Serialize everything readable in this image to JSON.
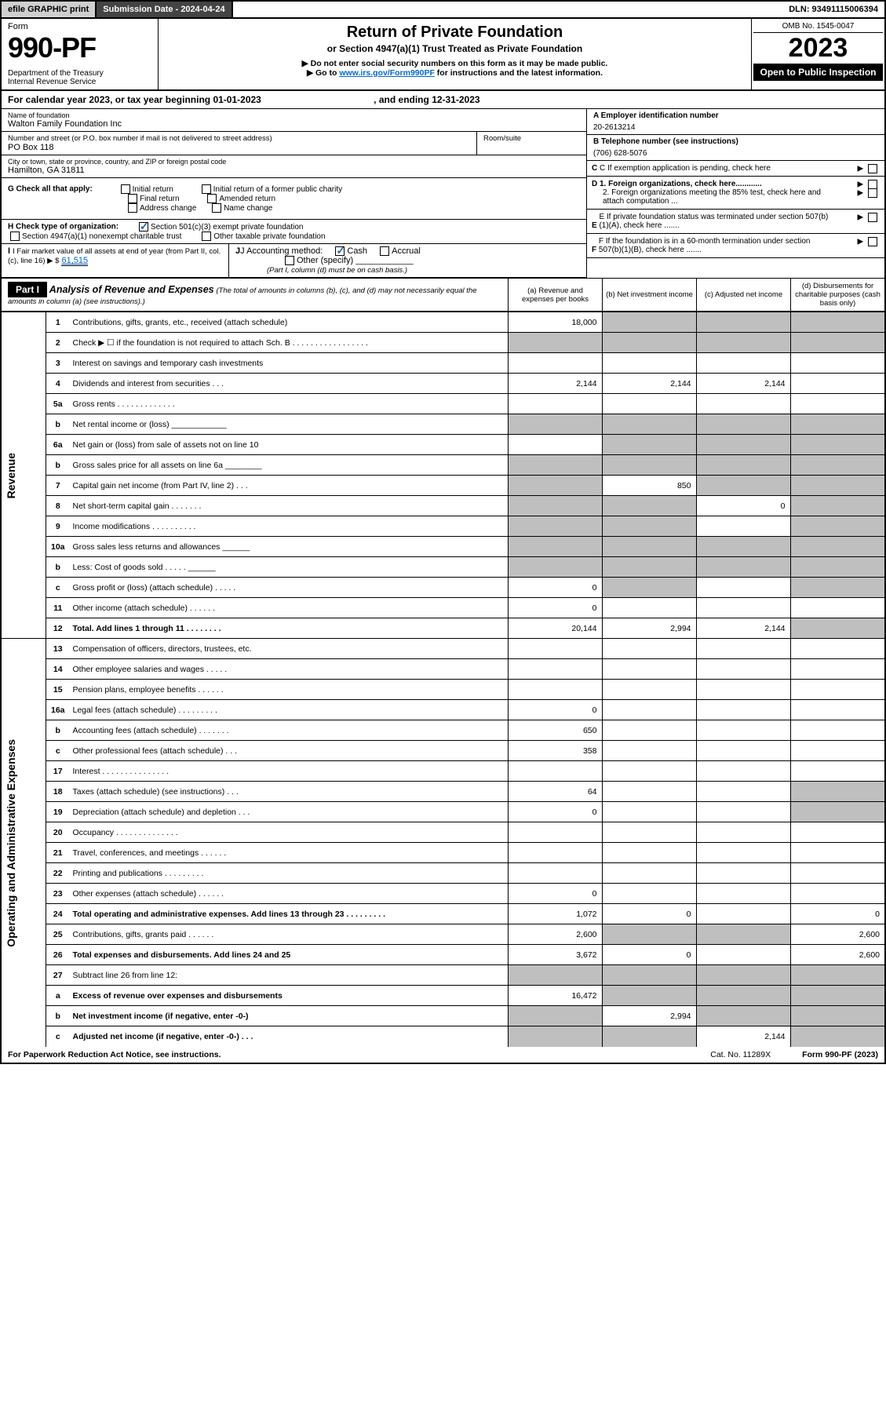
{
  "topbar": {
    "efile": "efile GRAPHIC print",
    "subdate": "Submission Date - 2024-04-24",
    "dln": "DLN: 93491115006394"
  },
  "header": {
    "form_label": "Form",
    "form_no": "990-PF",
    "dept": "Department of the Treasury\nInternal Revenue Service",
    "title": "Return of Private Foundation",
    "subtitle": "or Section 4947(a)(1) Trust Treated as Private Foundation",
    "note1": "▶ Do not enter social security numbers on this form as it may be made public.",
    "note2_pre": "▶ Go to ",
    "note2_link": "www.irs.gov/Form990PF",
    "note2_post": " for instructions and the latest information.",
    "omb": "OMB No. 1545-0047",
    "year": "2023",
    "open": "Open to Public Inspection"
  },
  "cy": {
    "pre": "For calendar year 2023, or tax year beginning ",
    "begin": "01-01-2023",
    "mid": " , and ending ",
    "end": "12-31-2023"
  },
  "id": {
    "name_lbl": "Name of foundation",
    "name": "Walton Family Foundation Inc",
    "addr_lbl": "Number and street (or P.O. box number if mail is not delivered to street address)",
    "addr": "PO Box 118",
    "room_lbl": "Room/suite",
    "city_lbl": "City or town, state or province, country, and ZIP or foreign postal code",
    "city": "Hamilton, GA  31811",
    "a_lbl": "A Employer identification number",
    "a_val": "20-2613214",
    "b_lbl": "B Telephone number (see instructions)",
    "b_val": "(706) 628-5076",
    "c_lbl": "C If exemption application is pending, check here",
    "d1": "D 1. Foreign organizations, check here............",
    "d2": "2. Foreign organizations meeting the 85% test, check here and attach computation ...",
    "e": "E If private foundation status was terminated under section 507(b)(1)(A), check here .......",
    "f": "F If the foundation is in a 60-month termination under section 507(b)(1)(B), check here .......",
    "g_lbl": "G Check all that apply:",
    "g_opts": [
      "Initial return",
      "Final return",
      "Address change",
      "Initial return of a former public charity",
      "Amended return",
      "Name change"
    ],
    "h_lbl": "H Check type of organization:",
    "h1": "Section 501(c)(3) exempt private foundation",
    "h2": "Section 4947(a)(1) nonexempt charitable trust",
    "h3": "Other taxable private foundation",
    "i_lbl": "I Fair market value of all assets at end of year (from Part II, col. (c), line 16) ▶ $",
    "i_val": "61,515",
    "j_lbl": "J Accounting method:",
    "j_cash": "Cash",
    "j_accr": "Accrual",
    "j_other": "Other (specify)",
    "j_note": "(Part I, column (d) must be on cash basis.)"
  },
  "part1": {
    "label": "Part I",
    "title": "Analysis of Revenue and Expenses",
    "title_note": "(The total of amounts in columns (b), (c), and (d) may not necessarily equal the amounts in column (a) (see instructions).)",
    "cols": {
      "a": "(a)  Revenue and expenses per books",
      "b": "(b)  Net investment income",
      "c": "(c)  Adjusted net income",
      "d": "(d)  Disbursements for charitable purposes (cash basis only)"
    }
  },
  "sections": {
    "revenue": "Revenue",
    "expenses": "Operating and Administrative Expenses"
  },
  "rows": [
    {
      "n": "1",
      "d": "Contributions, gifts, grants, etc., received (attach schedule)",
      "a": "18,000",
      "shade": [
        "b",
        "c",
        "d"
      ]
    },
    {
      "n": "2",
      "d": "Check ▶ ☐ if the foundation is not required to attach Sch. B   .  .  .  .  .  .  .  .  .  .  .  .  .  .  .  .  .",
      "shade": [
        "a",
        "b",
        "c",
        "d"
      ]
    },
    {
      "n": "3",
      "d": "Interest on savings and temporary cash investments"
    },
    {
      "n": "4",
      "d": "Dividends and interest from securities   .  .  .",
      "a": "2,144",
      "b": "2,144",
      "c": "2,144"
    },
    {
      "n": "5a",
      "d": "Gross rents   .  .  .  .  .  .  .  .  .  .  .  .  ."
    },
    {
      "n": "b",
      "d": "Net rental income or (loss)  ____________",
      "shade": [
        "a",
        "b",
        "c",
        "d"
      ]
    },
    {
      "n": "6a",
      "d": "Net gain or (loss) from sale of assets not on line 10",
      "shade": [
        "b",
        "c",
        "d"
      ]
    },
    {
      "n": "b",
      "d": "Gross sales price for all assets on line 6a ________",
      "shade": [
        "a",
        "b",
        "c",
        "d"
      ]
    },
    {
      "n": "7",
      "d": "Capital gain net income (from Part IV, line 2)   .  .  .",
      "b": "850",
      "shade": [
        "a",
        "c",
        "d"
      ]
    },
    {
      "n": "8",
      "d": "Net short-term capital gain   .  .  .  .  .  .  .",
      "c": "0",
      "shade": [
        "a",
        "b",
        "d"
      ]
    },
    {
      "n": "9",
      "d": "Income modifications  .  .  .  .  .  .  .  .  .  .",
      "shade": [
        "a",
        "b",
        "d"
      ]
    },
    {
      "n": "10a",
      "d": "Gross sales less returns and allowances  ______",
      "shade": [
        "a",
        "b",
        "c",
        "d"
      ]
    },
    {
      "n": "b",
      "d": "Less: Cost of goods sold    .  .  .  .  .  ______",
      "shade": [
        "a",
        "b",
        "c",
        "d"
      ]
    },
    {
      "n": "c",
      "d": "Gross profit or (loss) (attach schedule)   .  .  .  .  .",
      "a": "0",
      "shade": [
        "b",
        "d"
      ]
    },
    {
      "n": "11",
      "d": "Other income (attach schedule)   .  .  .  .  .  .",
      "a": "0"
    },
    {
      "n": "12",
      "d": "Total. Add lines 1 through 11   .  .  .  .  .  .  .  .",
      "a": "20,144",
      "b": "2,994",
      "c": "2,144",
      "bold": true,
      "shade": [
        "d"
      ]
    },
    {
      "n": "13",
      "d": "Compensation of officers, directors, trustees, etc."
    },
    {
      "n": "14",
      "d": "Other employee salaries and wages   .  .  .  .  ."
    },
    {
      "n": "15",
      "d": "Pension plans, employee benefits   .  .  .  .  .  ."
    },
    {
      "n": "16a",
      "d": "Legal fees (attach schedule)  .  .  .  .  .  .  .  .  .",
      "a": "0"
    },
    {
      "n": "b",
      "d": "Accounting fees (attach schedule)  .  .  .  .  .  .  .",
      "a": "650"
    },
    {
      "n": "c",
      "d": "Other professional fees (attach schedule)   .  .  .",
      "a": "358"
    },
    {
      "n": "17",
      "d": "Interest  .  .  .  .  .  .  .  .  .  .  .  .  .  .  ."
    },
    {
      "n": "18",
      "d": "Taxes (attach schedule) (see instructions)   .  .  .",
      "a": "64",
      "shade": [
        "d"
      ]
    },
    {
      "n": "19",
      "d": "Depreciation (attach schedule) and depletion   .  .  .",
      "a": "0",
      "shade": [
        "d"
      ]
    },
    {
      "n": "20",
      "d": "Occupancy  .  .  .  .  .  .  .  .  .  .  .  .  .  ."
    },
    {
      "n": "21",
      "d": "Travel, conferences, and meetings  .  .  .  .  .  ."
    },
    {
      "n": "22",
      "d": "Printing and publications  .  .  .  .  .  .  .  .  ."
    },
    {
      "n": "23",
      "d": "Other expenses (attach schedule)  .  .  .  .  .  .",
      "a": "0"
    },
    {
      "n": "24",
      "d": "Total operating and administrative expenses. Add lines 13 through 23   .  .  .  .  .  .  .  .  .",
      "a": "1,072",
      "b": "0",
      "d_": "0",
      "bold": true
    },
    {
      "n": "25",
      "d": "Contributions, gifts, grants paid   .  .  .  .  .  .",
      "a": "2,600",
      "d_": "2,600",
      "shade": [
        "b",
        "c"
      ]
    },
    {
      "n": "26",
      "d": "Total expenses and disbursements. Add lines 24 and 25",
      "a": "3,672",
      "b": "0",
      "d_": "2,600",
      "bold": true
    },
    {
      "n": "27",
      "d": "Subtract line 26 from line 12:",
      "shade": [
        "a",
        "b",
        "c",
        "d"
      ]
    },
    {
      "n": "a",
      "d": "Excess of revenue over expenses and disbursements",
      "a": "16,472",
      "bold": true,
      "shade": [
        "b",
        "c",
        "d"
      ]
    },
    {
      "n": "b",
      "d": "Net investment income (if negative, enter -0-)",
      "b": "2,994",
      "bold": true,
      "shade": [
        "a",
        "c",
        "d"
      ]
    },
    {
      "n": "c",
      "d": "Adjusted net income (if negative, enter -0-)   .  .  .",
      "c": "2,144",
      "bold": true,
      "shade": [
        "a",
        "b",
        "d"
      ]
    }
  ],
  "footer": {
    "pra": "For Paperwork Reduction Act Notice, see instructions.",
    "cat": "Cat. No. 11289X",
    "form": "Form 990-PF (2023)"
  },
  "colors": {
    "shade": "#bfbfbf",
    "topgray": "#cfcfcf",
    "topdark": "#444444",
    "link": "#0066cc",
    "check": "#1a6bb0"
  }
}
